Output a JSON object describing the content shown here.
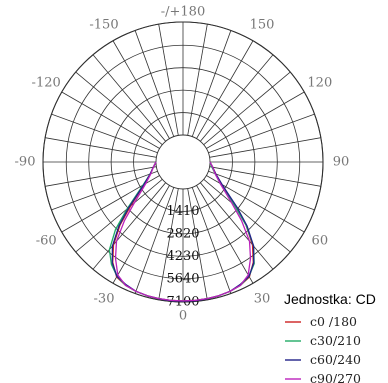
{
  "chart_data": {
    "type": "polar",
    "angle_labels": [
      {
        "text": "-/+180",
        "angle": 180
      },
      {
        "text": "150",
        "angle": 150
      },
      {
        "text": "-150",
        "angle": -150
      },
      {
        "text": "120",
        "angle": 120
      },
      {
        "text": "-120",
        "angle": -120
      },
      {
        "text": "90",
        "angle": 90
      },
      {
        "text": "-90",
        "angle": -90
      },
      {
        "text": "60",
        "angle": 60
      },
      {
        "text": "-60",
        "angle": -60
      },
      {
        "text": "30",
        "angle": 30
      },
      {
        "text": "-30",
        "angle": -30
      },
      {
        "text": "0",
        "angle": 0
      }
    ],
    "radial_labels": [
      "1410",
      "2820",
      "4230",
      "5640",
      "7100"
    ],
    "radial_ticks": [
      1410,
      2820,
      4230,
      5640,
      7100
    ],
    "radial_max": 7100,
    "angle_step": 10,
    "legend": {
      "title": "Jednostka: CD",
      "placement": "bottom-right"
    },
    "series": [
      {
        "name": "c0 /180",
        "color": "#cc2222",
        "angles": [
          -90,
          -80,
          -70,
          -60,
          -55,
          -50,
          -45,
          -40,
          -35,
          -30,
          -25,
          -20,
          -15,
          -10,
          -5,
          0,
          5,
          10,
          15,
          20,
          25,
          30,
          35,
          40,
          45,
          50,
          55,
          60,
          70,
          80,
          90
        ],
        "values": [
          0,
          200,
          500,
          1100,
          1700,
          2600,
          3900,
          5100,
          6000,
          6650,
          6850,
          6950,
          7000,
          7020,
          7030,
          7030,
          7030,
          7020,
          7000,
          6950,
          6850,
          6650,
          6000,
          5100,
          3900,
          2600,
          1700,
          1100,
          500,
          200,
          0
        ]
      },
      {
        "name": "c30/210",
        "color": "#22aa66",
        "angles": [
          -90,
          -80,
          -70,
          -60,
          -55,
          -50,
          -45,
          -40,
          -35,
          -30,
          -25,
          -20,
          -15,
          -10,
          -5,
          0,
          5,
          10,
          15,
          20,
          25,
          30,
          35,
          40,
          45,
          50,
          55,
          60,
          70,
          80,
          90
        ],
        "values": [
          0,
          200,
          500,
          1200,
          1850,
          2900,
          4300,
          5500,
          6150,
          6600,
          6850,
          6950,
          7000,
          7020,
          7030,
          7040,
          7030,
          7020,
          7000,
          6950,
          6850,
          6600,
          6100,
          5200,
          3900,
          2500,
          1600,
          1000,
          450,
          150,
          0
        ]
      },
      {
        "name": "c60/240",
        "color": "#222288",
        "angles": [
          -90,
          -80,
          -70,
          -60,
          -55,
          -50,
          -45,
          -40,
          -35,
          -30,
          -25,
          -20,
          -15,
          -10,
          -5,
          0,
          5,
          10,
          15,
          20,
          25,
          30,
          35,
          40,
          45,
          50,
          55,
          60,
          70,
          80,
          90
        ],
        "values": [
          0,
          200,
          500,
          1150,
          1750,
          2750,
          4000,
          5200,
          6050,
          6600,
          6800,
          6950,
          7000,
          7030,
          7050,
          7050,
          7050,
          7030,
          7000,
          6950,
          6800,
          6600,
          6050,
          5200,
          4000,
          2750,
          1750,
          1150,
          500,
          200,
          0
        ]
      },
      {
        "name": "c90/270",
        "color": "#bb22bb",
        "angles": [
          -90,
          -80,
          -70,
          -60,
          -55,
          -50,
          -45,
          -40,
          -35,
          -30,
          -25,
          -20,
          -15,
          -10,
          -5,
          0,
          5,
          10,
          15,
          20,
          25,
          30,
          35,
          40,
          45,
          50,
          55,
          60,
          70,
          80,
          90
        ],
        "values": [
          0,
          200,
          450,
          1000,
          1500,
          2300,
          3500,
          4800,
          5700,
          6500,
          6850,
          6950,
          7000,
          7020,
          7030,
          7030,
          7030,
          7020,
          7000,
          6950,
          6850,
          6500,
          5700,
          4800,
          3500,
          2300,
          1500,
          1000,
          450,
          200,
          0
        ]
      }
    ]
  }
}
